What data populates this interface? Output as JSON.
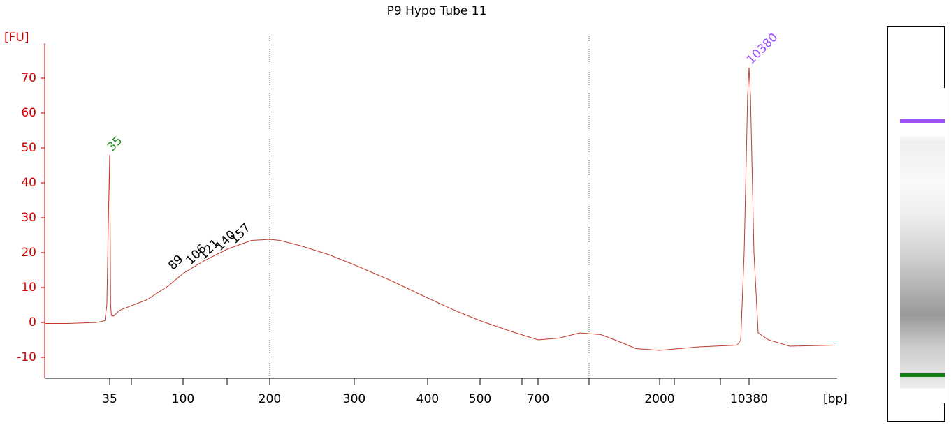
{
  "chart_data": {
    "type": "line",
    "title": "P9 Hypo Tube 11",
    "y_axis_label": "[FU]",
    "x_axis_label": "[bp]",
    "ylim": [
      -16,
      80
    ],
    "yticks": [
      -10,
      0,
      10,
      20,
      30,
      40,
      50,
      60,
      70
    ],
    "xlim": [
      15,
      20000
    ],
    "xticks": [
      35,
      100,
      200,
      300,
      400,
      500,
      700,
      2000,
      10380
    ],
    "series": [
      {
        "color": "#c0392b",
        "x": [
          15,
          22,
          31,
          33.5,
          34.1,
          34.6,
          35,
          35.4,
          35.8,
          36.5,
          38.4,
          44,
          68,
          87,
          100,
          123,
          151,
          179,
          200,
          212,
          236,
          269,
          300,
          350,
          400,
          451,
          500,
          604,
          700,
          924,
          1148,
          1372,
          1597,
          1746,
          2000,
          5667,
          9269,
          9600,
          9922,
          10249,
          10380,
          10536,
          10927,
          11396,
          12570,
          14917,
          20000
        ],
        "values": [
          -0.3,
          -0.3,
          0,
          0.5,
          5,
          30,
          48,
          30,
          5,
          2,
          1.8,
          3.5,
          6.5,
          10.5,
          14,
          17.5,
          21,
          23.5,
          23.8,
          23.5,
          22,
          19.5,
          16.5,
          12,
          7,
          3.5,
          0.5,
          -2.5,
          -5,
          -4.5,
          -3,
          -3.5,
          -5.8,
          -7.5,
          -8,
          -7,
          -6.5,
          -5,
          20,
          65,
          73,
          65,
          20,
          -3,
          -5,
          -6.8,
          -6.5
        ]
      }
    ],
    "peaks": [
      {
        "x": 35,
        "y": 48,
        "color": "#1a8a1a"
      },
      {
        "x": 89,
        "y": 14,
        "color": "#000000"
      },
      {
        "x": 106,
        "y": 15.5,
        "color": "#000000"
      },
      {
        "x": 121,
        "y": 17,
        "color": "#000000"
      },
      {
        "x": 140,
        "y": 19.5,
        "color": "#000000"
      },
      {
        "x": 157,
        "y": 21.5,
        "color": "#000000"
      },
      {
        "x": 10380,
        "y": 73,
        "color": "#9b4dff"
      }
    ]
  }
}
